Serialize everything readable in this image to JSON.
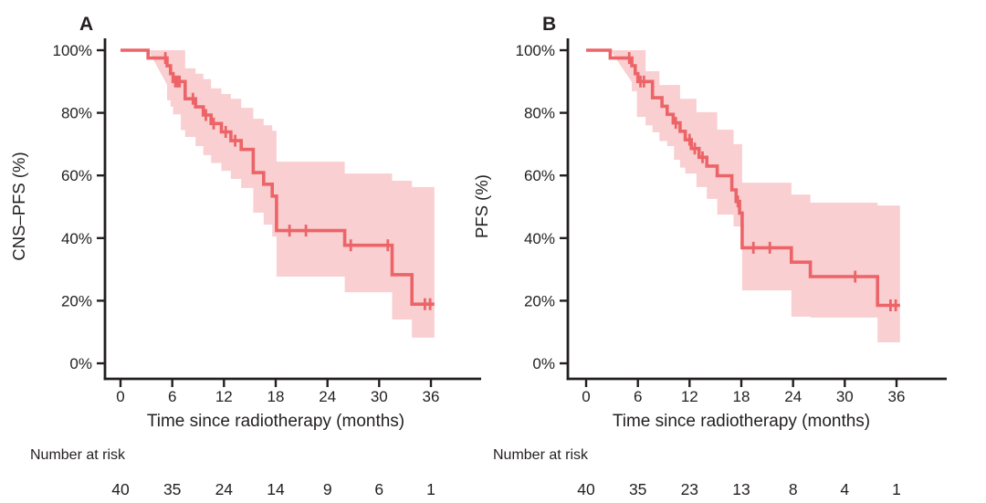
{
  "figure": {
    "background": "#ffffff"
  },
  "styles": {
    "curve_color": "#ec6467",
    "band_color": "#f9cfd1",
    "axis_color": "#231f20",
    "text_color": "#231f20"
  },
  "chart_data": [
    {
      "type": "line",
      "subtype": "kaplan-meier-step",
      "panel_label": "A",
      "series_name": "CNS-PFS",
      "title": "",
      "xlabel": "Time since radiotherapy (months)",
      "ylabel": "CNS–PFS (%)",
      "xlim": [
        0,
        38
      ],
      "ylim": [
        0,
        100
      ],
      "grid": false,
      "legend": "none",
      "xtick_values": [
        0,
        6,
        12,
        18,
        24,
        30,
        36
      ],
      "xtick_labels": [
        "0",
        "6",
        "12",
        "18",
        "24",
        "30",
        "36"
      ],
      "ytick_values": [
        0,
        20,
        40,
        60,
        80,
        100
      ],
      "ytick_labels": [
        "0%",
        "20%",
        "40%",
        "60%",
        "80%",
        "100%"
      ],
      "km_steps": [
        [
          0,
          100
        ],
        [
          3.2,
          97.5
        ],
        [
          5.4,
          95
        ],
        [
          5.8,
          92.5
        ],
        [
          6.1,
          90
        ],
        [
          7.5,
          84.5
        ],
        [
          8.7,
          81.9
        ],
        [
          9.6,
          79.3
        ],
        [
          10.5,
          76.6
        ],
        [
          11.7,
          73.9
        ],
        [
          12.8,
          71.1
        ],
        [
          14.0,
          68.3
        ],
        [
          15.4,
          60.9
        ],
        [
          16.6,
          57.2
        ],
        [
          17.6,
          53.4
        ],
        [
          18.1,
          42.4
        ],
        [
          26.0,
          37.7
        ],
        [
          31.5,
          28.3
        ],
        [
          33.8,
          18.9
        ],
        [
          36.4,
          18.9
        ]
      ],
      "censor_marks": [
        [
          5.2,
          97.5
        ],
        [
          6.35,
          90
        ],
        [
          6.6,
          90
        ],
        [
          6.85,
          90
        ],
        [
          8.4,
          84.5
        ],
        [
          9.9,
          79.3
        ],
        [
          10.8,
          76.6
        ],
        [
          12.2,
          73.9
        ],
        [
          13.3,
          71.1
        ],
        [
          19.6,
          42.4
        ],
        [
          21.5,
          42.4
        ],
        [
          26.7,
          37.7
        ],
        [
          31.0,
          37.7
        ],
        [
          35.3,
          18.9
        ],
        [
          35.9,
          18.9
        ]
      ],
      "ci_band": [
        [
          3.2,
          89,
          100
        ],
        [
          5.4,
          84,
          100
        ],
        [
          5.8,
          82,
          100
        ],
        [
          6.1,
          79.5,
          100
        ],
        [
          7.0,
          74.5,
          100
        ],
        [
          7.5,
          72.3,
          94.2
        ],
        [
          8.7,
          69.4,
          92.5
        ],
        [
          9.6,
          66.5,
          90.8
        ],
        [
          10.5,
          64,
          87.8
        ],
        [
          11.7,
          61.5,
          86
        ],
        [
          12.8,
          58.9,
          84.5
        ],
        [
          14.0,
          56,
          81.6
        ],
        [
          15.4,
          48.1,
          78.1
        ],
        [
          16.6,
          44.3,
          76
        ],
        [
          17.6,
          40.5,
          74.3
        ],
        [
          18.1,
          27.7,
          64.4
        ],
        [
          26.0,
          22.7,
          60.6
        ],
        [
          31.5,
          14.0,
          58.3
        ],
        [
          33.8,
          8.2,
          56.3
        ],
        [
          36.4,
          8.2,
          56.3
        ]
      ],
      "number_at_risk_label": "Number at risk",
      "number_at_risk_times": [
        0,
        6,
        12,
        18,
        24,
        30,
        36
      ],
      "number_at_risk": [
        "40",
        "35",
        "24",
        "14",
        "9",
        "6",
        "1"
      ]
    },
    {
      "type": "line",
      "subtype": "kaplan-meier-step",
      "panel_label": "B",
      "series_name": "PFS",
      "title": "",
      "xlabel": "Time since radiotherapy (months)",
      "ylabel": "PFS (%)",
      "xlim": [
        0,
        38
      ],
      "ylim": [
        0,
        100
      ],
      "grid": false,
      "legend": "none",
      "xtick_values": [
        0,
        6,
        12,
        18,
        24,
        30,
        36
      ],
      "xtick_labels": [
        "0",
        "6",
        "12",
        "18",
        "24",
        "30",
        "36"
      ],
      "ytick_values": [
        0,
        20,
        40,
        60,
        80,
        100
      ],
      "ytick_labels": [
        "0%",
        "20%",
        "40%",
        "60%",
        "80%",
        "100%"
      ],
      "km_steps": [
        [
          0,
          100
        ],
        [
          2.8,
          97.5
        ],
        [
          5.3,
          95
        ],
        [
          5.7,
          92.5
        ],
        [
          6.0,
          90
        ],
        [
          7.7,
          84.8
        ],
        [
          8.8,
          82.1
        ],
        [
          9.4,
          79.5
        ],
        [
          10.1,
          76.8
        ],
        [
          10.9,
          74.1
        ],
        [
          11.5,
          71.4
        ],
        [
          12.2,
          68.6
        ],
        [
          13.1,
          65.8
        ],
        [
          14.0,
          63.0
        ],
        [
          15.2,
          59.9
        ],
        [
          16.9,
          55.4
        ],
        [
          17.4,
          51.7
        ],
        [
          17.8,
          48.0
        ],
        [
          18.1,
          36.9
        ],
        [
          23.8,
          32.3
        ],
        [
          26.0,
          27.7
        ],
        [
          33.8,
          18.5
        ],
        [
          36.4,
          18.5
        ]
      ],
      "censor_marks": [
        [
          5.0,
          97.5
        ],
        [
          6.3,
          90
        ],
        [
          6.7,
          90
        ],
        [
          10.4,
          76.8
        ],
        [
          12.0,
          71.4
        ],
        [
          12.6,
          68.6
        ],
        [
          13.5,
          65.8
        ],
        [
          17.6,
          51.7
        ],
        [
          19.4,
          36.9
        ],
        [
          21.3,
          36.9
        ],
        [
          31.2,
          27.7
        ],
        [
          35.3,
          18.5
        ],
        [
          35.9,
          18.5
        ]
      ],
      "ci_band": [
        [
          2.8,
          89.8,
          100
        ],
        [
          5.3,
          86.9,
          100
        ],
        [
          5.9,
          78.7,
          100
        ],
        [
          6.9,
          76,
          93.3
        ],
        [
          7.7,
          73.8,
          93.3
        ],
        [
          8.5,
          71,
          88.9
        ],
        [
          9.4,
          69.4,
          88.9
        ],
        [
          10.2,
          65,
          88.9
        ],
        [
          10.9,
          62.5,
          84.5
        ],
        [
          11.5,
          60.6,
          84.5
        ],
        [
          12.8,
          56.3,
          80.2
        ],
        [
          14.0,
          52.5,
          80.2
        ],
        [
          15.2,
          47.5,
          74.6
        ],
        [
          17.1,
          43.7,
          70
        ],
        [
          18.1,
          23.3,
          57.7
        ],
        [
          23.8,
          14.9,
          53.9
        ],
        [
          26.0,
          14.6,
          51.3
        ],
        [
          33.8,
          6.7,
          50.4
        ],
        [
          36.4,
          6.7,
          50.4
        ]
      ],
      "number_at_risk_label": "Number at risk",
      "number_at_risk_times": [
        0,
        6,
        12,
        18,
        24,
        30,
        36
      ],
      "number_at_risk": [
        "40",
        "35",
        "23",
        "13",
        "8",
        "4",
        "1"
      ]
    }
  ]
}
